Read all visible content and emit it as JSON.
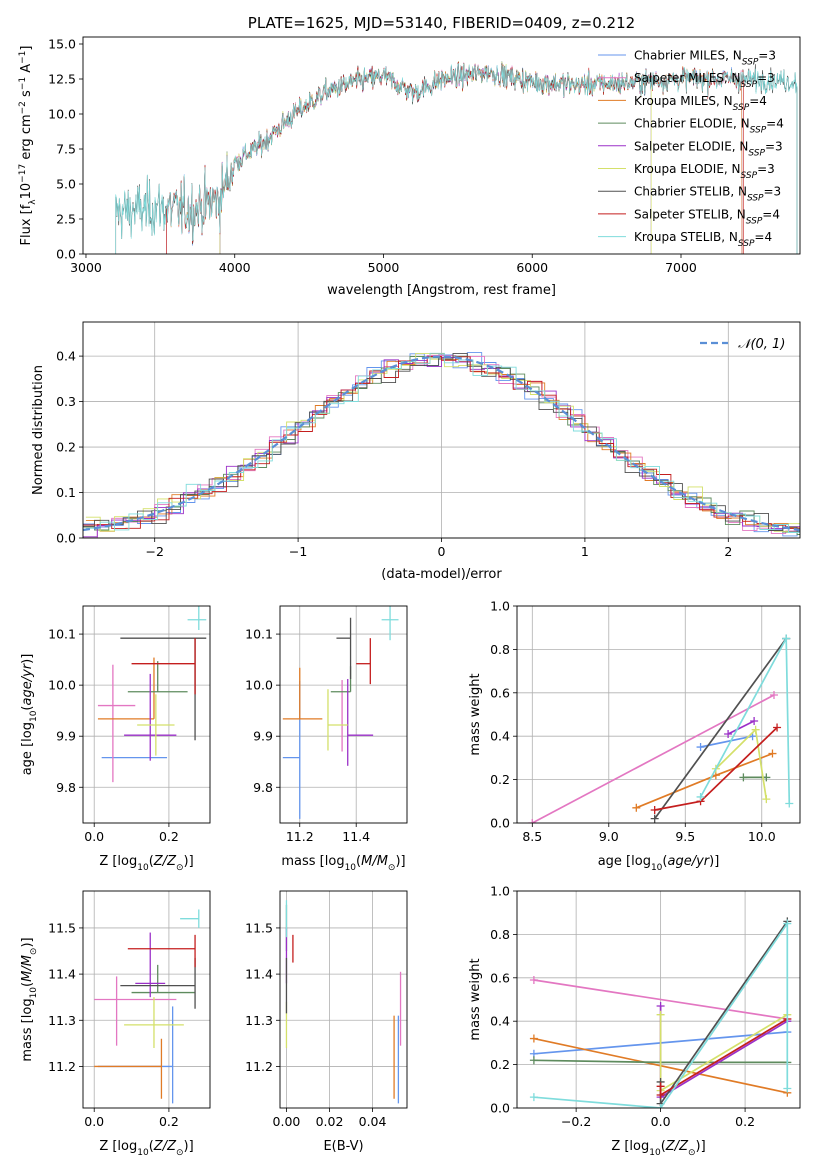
{
  "colors": {
    "Chabrier MILES": "#6495ED",
    "Salpeter MILES": "#E377C2",
    "Kroupa MILES": "#E07B26",
    "Chabrier ELODIE": "#5E8B5E",
    "Salpeter ELODIE": "#9B30C8",
    "Kroupa ELODIE": "#D4E06A",
    "Chabrier STELIB": "#505050",
    "Salpeter STELIB": "#C41E1E",
    "Kroupa STELIB": "#7FDCDC",
    "gaussian": "#5A8FD6",
    "grid": "#b0b0b0"
  },
  "chart_data": [
    {
      "id": "spectrum",
      "type": "line",
      "title": "PLATE=1625, MJD=53140, FIBERID=0409, z=0.212",
      "xlabel": "wavelength [Angstrom, rest frame]",
      "ylabel": "Flux [f_λ 10^−17 erg cm^−2 s^−1 A^−1]",
      "xlim": [
        2980,
        7800
      ],
      "ylim": [
        0,
        15.5
      ],
      "xticks": [
        "3000",
        "4000",
        "5000",
        "6000",
        "7000"
      ],
      "yticks": [
        "0.0",
        "2.5",
        "5.0",
        "7.5",
        "10.0",
        "12.5",
        "15.0"
      ],
      "grid": false,
      "legend": "upper right",
      "continuum_anchors": [
        [
          3200,
          3.0
        ],
        [
          3500,
          3.3
        ],
        [
          3700,
          3.1
        ],
        [
          3900,
          4.0
        ],
        [
          4000,
          6.5
        ],
        [
          4200,
          8.0
        ],
        [
          4400,
          10.0
        ],
        [
          4600,
          11.5
        ],
        [
          4800,
          12.3
        ],
        [
          5000,
          12.7
        ],
        [
          5200,
          11.5
        ],
        [
          5400,
          12.5
        ],
        [
          5700,
          13.0
        ],
        [
          6000,
          12.3
        ],
        [
          6300,
          12.1
        ],
        [
          6600,
          12.2
        ],
        [
          7000,
          12.5
        ],
        [
          7400,
          12.5
        ],
        [
          7780,
          12.3
        ]
      ],
      "series": [
        {
          "name": "Chabrier MILES",
          "nssp": "3",
          "x_range": [
            3540,
            7410
          ]
        },
        {
          "name": "Salpeter MILES",
          "nssp": "3",
          "x_range": [
            3540,
            7410
          ]
        },
        {
          "name": "Kroupa MILES",
          "nssp": "4",
          "x_range": [
            3540,
            7410
          ]
        },
        {
          "name": "Chabrier ELODIE",
          "nssp": "4",
          "x_range": [
            3900,
            6800
          ]
        },
        {
          "name": "Salpeter ELODIE",
          "nssp": "3",
          "x_range": [
            3900,
            6800
          ]
        },
        {
          "name": "Kroupa ELODIE",
          "nssp": "3",
          "x_range": [
            3900,
            6800
          ]
        },
        {
          "name": "Chabrier STELIB",
          "nssp": "3",
          "x_range": [
            3200,
            7780
          ]
        },
        {
          "name": "Salpeter STELIB",
          "nssp": "4",
          "x_range": [
            3540,
            7420
          ]
        },
        {
          "name": "Kroupa STELIB",
          "nssp": "4",
          "x_range": [
            3200,
            7780
          ]
        }
      ]
    },
    {
      "id": "residuals",
      "type": "line",
      "xlabel": "(data-model)/error",
      "ylabel": "Normed distribution",
      "xlim": [
        -2.5,
        2.5
      ],
      "ylim": [
        0,
        0.475
      ],
      "xticks": [
        "−2",
        "−1",
        "0",
        "1",
        "2"
      ],
      "yticks": [
        "0.0",
        "0.1",
        "0.2",
        "0.3",
        "0.4"
      ],
      "grid": true,
      "legend": "upper right",
      "gaussian_label": "𝒩(0, 1)",
      "bin_width": 0.1,
      "note": "Normalized step histograms, one per fit, following a standard normal curve."
    },
    {
      "id": "age_vs_Z",
      "type": "scatter",
      "xlabel": "Z [log10(Z/Z⊙)]",
      "ylabel": "age [log10(age/yr)]",
      "xlim": [
        -0.03,
        0.31
      ],
      "ylim": [
        9.73,
        10.155
      ],
      "xticks": [
        "0.0",
        "0.2"
      ],
      "yticks": [
        "9.8",
        "9.9",
        "10.0",
        "10.1"
      ],
      "grid": true,
      "points": [
        {
          "name": "Chabrier MILES",
          "x": 0.105,
          "xerr": [
            0.085,
            0.09
          ],
          "y": 9.858,
          "yerr": [
            0,
            0
          ]
        },
        {
          "name": "Salpeter MILES",
          "x": 0.05,
          "xerr": [
            0.04,
            0.06
          ],
          "y": 9.96,
          "yerr": [
            0.15,
            0.08
          ]
        },
        {
          "name": "Kroupa MILES",
          "x": 0.16,
          "xerr": [
            0.15,
            0.0
          ],
          "y": 9.934,
          "yerr": [
            0.0,
            0.12
          ]
        },
        {
          "name": "Chabrier ELODIE",
          "x": 0.17,
          "xerr": [
            0.08,
            0.08
          ],
          "y": 9.987,
          "yerr": [
            0.0,
            0.06
          ]
        },
        {
          "name": "Salpeter ELODIE",
          "x": 0.15,
          "xerr": [
            0.07,
            0.07
          ],
          "y": 9.902,
          "yerr": [
            0.05,
            0.12
          ]
        },
        {
          "name": "Kroupa ELODIE",
          "x": 0.165,
          "xerr": [
            0.05,
            0.05
          ],
          "y": 9.922,
          "yerr": [
            0.06,
            0.06
          ]
        },
        {
          "name": "Chabrier STELIB",
          "x": 0.27,
          "xerr": [
            0.2,
            0.03
          ],
          "y": 10.092,
          "yerr": [
            0.2,
            0.0
          ]
        },
        {
          "name": "Salpeter STELIB",
          "x": 0.27,
          "xerr": [
            0.17,
            0.0
          ],
          "y": 10.042,
          "yerr": [
            0.06,
            0.05
          ]
        },
        {
          "name": "Kroupa STELIB",
          "x": 0.28,
          "xerr": [
            0.03,
            0.02
          ],
          "y": 10.128,
          "yerr": [
            0.02,
            0.03
          ]
        }
      ]
    },
    {
      "id": "age_vs_mass",
      "type": "scatter",
      "xlabel": "mass [log10(M/M⊙)]",
      "ylabel": "",
      "xlim": [
        11.13,
        11.58
      ],
      "ylim": [
        9.73,
        10.155
      ],
      "xticks": [
        "11.2",
        "11.4"
      ],
      "yticks": [
        "9.8",
        "9.9",
        "10.0",
        "10.1"
      ],
      "grid": true,
      "points": [
        {
          "name": "Chabrier MILES",
          "x": 11.2,
          "xerr": [
            0.06,
            0.0
          ],
          "y": 9.858,
          "yerr": [
            0.12,
            0.15
          ]
        },
        {
          "name": "Salpeter MILES",
          "x": 11.35,
          "xerr": [
            0,
            0
          ],
          "y": 9.96,
          "yerr": [
            0.09,
            0.05
          ]
        },
        {
          "name": "Kroupa MILES",
          "x": 11.2,
          "xerr": [
            0.06,
            0.08
          ],
          "y": 9.934,
          "yerr": [
            0.0,
            0.1
          ]
        },
        {
          "name": "Chabrier ELODIE",
          "x": 11.38,
          "xerr": [
            0.07,
            0.0
          ],
          "y": 9.987,
          "yerr": [
            0.0,
            0.05
          ]
        },
        {
          "name": "Salpeter ELODIE",
          "x": 11.37,
          "xerr": [
            0.0,
            0.09
          ],
          "y": 9.902,
          "yerr": [
            0.06,
            0.11
          ]
        },
        {
          "name": "Kroupa ELODIE",
          "x": 11.3,
          "xerr": [
            0.0,
            0.07
          ],
          "y": 9.922,
          "yerr": [
            0.05,
            0.07
          ]
        },
        {
          "name": "Chabrier STELIB",
          "x": 11.38,
          "xerr": [
            0.05,
            0.0
          ],
          "y": 10.092,
          "yerr": [
            0.08,
            0.04
          ]
        },
        {
          "name": "Salpeter STELIB",
          "x": 11.45,
          "xerr": [
            0.05,
            0.0
          ],
          "y": 10.042,
          "yerr": [
            0.04,
            0.05
          ]
        },
        {
          "name": "Kroupa STELIB",
          "x": 11.52,
          "xerr": [
            0.03,
            0.03
          ],
          "y": 10.128,
          "yerr": [
            0.04,
            0.03
          ]
        }
      ]
    },
    {
      "id": "weight_vs_age",
      "type": "line",
      "xlabel": "age [log10(age/yr)]",
      "ylabel": "mass weight",
      "xlim": [
        8.4,
        10.25
      ],
      "ylim": [
        0.0,
        1.0
      ],
      "xticks": [
        "8.5",
        "9.0",
        "9.5",
        "10.0"
      ],
      "yticks": [
        "0.0",
        "0.2",
        "0.4",
        "0.6",
        "0.8",
        "1.0"
      ],
      "grid": true,
      "series": [
        {
          "name": "Chabrier MILES",
          "x": [
            9.6,
            9.94
          ],
          "y": [
            0.35,
            0.4
          ]
        },
        {
          "name": "Salpeter MILES",
          "x": [
            8.5,
            10.08
          ],
          "y": [
            0.0,
            0.59
          ]
        },
        {
          "name": "Kroupa MILES",
          "x": [
            9.18,
            9.7,
            10.07
          ],
          "y": [
            0.07,
            0.22,
            0.32
          ]
        },
        {
          "name": "Chabrier ELODIE",
          "x": [
            9.88,
            10.03
          ],
          "y": [
            0.21,
            0.21
          ]
        },
        {
          "name": "Salpeter ELODIE",
          "x": [
            9.78,
            9.95
          ],
          "y": [
            0.41,
            0.47
          ]
        },
        {
          "name": "Kroupa ELODIE",
          "x": [
            9.7,
            9.96,
            10.03
          ],
          "y": [
            0.25,
            0.43,
            0.11
          ]
        },
        {
          "name": "Chabrier STELIB",
          "x": [
            9.3,
            10.16
          ],
          "y": [
            0.02,
            0.85
          ]
        },
        {
          "name": "Salpeter STELIB",
          "x": [
            9.3,
            9.6,
            10.1
          ],
          "y": [
            0.06,
            0.1,
            0.44
          ]
        },
        {
          "name": "Kroupa STELIB",
          "x": [
            9.6,
            10.16,
            10.18
          ],
          "y": [
            0.12,
            0.85,
            0.09
          ]
        }
      ]
    },
    {
      "id": "mass_vs_Z",
      "type": "scatter",
      "xlabel": "Z [log10(Z/Z⊙)]",
      "ylabel": "mass [log10(M/M⊙)]",
      "xlim": [
        -0.03,
        0.31
      ],
      "ylim": [
        11.11,
        11.58
      ],
      "xticks": [
        "0.0",
        "0.2"
      ],
      "yticks": [
        "11.2",
        "11.3",
        "11.4",
        "11.5"
      ],
      "grid": true,
      "points": [
        {
          "name": "Chabrier MILES",
          "x": 0.21,
          "xerr": [
            0.2,
            0.0
          ],
          "y": 11.2,
          "yerr": [
            0.08,
            0.13
          ]
        },
        {
          "name": "Salpeter MILES",
          "x": 0.06,
          "xerr": [
            0.06,
            0.16
          ],
          "y": 11.345,
          "yerr": [
            0.1,
            0.05
          ]
        },
        {
          "name": "Kroupa MILES",
          "x": 0.18,
          "xerr": [
            0.18,
            0.0
          ],
          "y": 11.2,
          "yerr": [
            0.07,
            0.06
          ]
        },
        {
          "name": "Chabrier ELODIE",
          "x": 0.17,
          "xerr": [
            0.07,
            0.1
          ],
          "y": 11.36,
          "yerr": [
            0.0,
            0.06
          ]
        },
        {
          "name": "Salpeter ELODIE",
          "x": 0.15,
          "xerr": [
            0.04,
            0.04
          ],
          "y": 11.38,
          "yerr": [
            0.03,
            0.11
          ]
        },
        {
          "name": "Kroupa ELODIE",
          "x": 0.16,
          "xerr": [
            0.08,
            0.08
          ],
          "y": 11.29,
          "yerr": [
            0.05,
            0.06
          ]
        },
        {
          "name": "Chabrier STELIB",
          "x": 0.27,
          "xerr": [
            0.2,
            0.0
          ],
          "y": 11.375,
          "yerr": [
            0.05,
            0.06
          ]
        },
        {
          "name": "Salpeter STELIB",
          "x": 0.27,
          "xerr": [
            0.18,
            0.0
          ],
          "y": 11.455,
          "yerr": [
            0.04,
            0.03
          ]
        },
        {
          "name": "Kroupa STELIB",
          "x": 0.28,
          "xerr": [
            0.05,
            0.0
          ],
          "y": 11.52,
          "yerr": [
            0.02,
            0.02
          ]
        }
      ]
    },
    {
      "id": "mass_vs_ebv",
      "type": "scatter",
      "xlabel": "E(B-V)",
      "ylabel": "",
      "xlim": [
        -0.003,
        0.056
      ],
      "ylim": [
        11.11,
        11.58
      ],
      "xticks": [
        "0.00",
        "0.02",
        "0.04"
      ],
      "yticks": [
        "11.2",
        "11.3",
        "11.4",
        "11.5"
      ],
      "grid": true,
      "points": [
        {
          "name": "Chabrier MILES",
          "x": 0.052,
          "y": 11.2,
          "yerr": [
            0.08,
            0.11
          ]
        },
        {
          "name": "Salpeter MILES",
          "x": 0.053,
          "y": 11.345,
          "yerr": [
            0.1,
            0.06
          ]
        },
        {
          "name": "Kroupa MILES",
          "x": 0.05,
          "y": 11.2,
          "yerr": [
            0.07,
            0.11
          ]
        },
        {
          "name": "Chabrier ELODIE",
          "x": 0.0,
          "y": 11.5,
          "yerr": [
            0.05,
            0.05
          ]
        },
        {
          "name": "Salpeter ELODIE",
          "x": 0.0,
          "y": 11.4,
          "yerr": [
            0.02,
            0.1
          ]
        },
        {
          "name": "Kroupa ELODIE",
          "x": 0.0,
          "y": 11.29,
          "yerr": [
            0.05,
            0.05
          ]
        },
        {
          "name": "Chabrier STELIB",
          "x": 0.0,
          "y": 11.375,
          "yerr": [
            0.06,
            0.06
          ]
        },
        {
          "name": "Salpeter STELIB",
          "x": 0.003,
          "y": 11.455,
          "yerr": [
            0.03,
            0.03
          ]
        },
        {
          "name": "Kroupa STELIB",
          "x": 0.0,
          "y": 11.52,
          "yerr": [
            0.04,
            0.04
          ]
        }
      ]
    },
    {
      "id": "weight_vs_Z",
      "type": "line",
      "xlabel": "Z [log10(Z/Z⊙)]",
      "ylabel": "mass weight",
      "xlim": [
        -0.34,
        0.33
      ],
      "ylim": [
        0.0,
        1.0
      ],
      "xticks": [
        "−0.2",
        "0.0",
        "0.2"
      ],
      "yticks": [
        "0.0",
        "0.2",
        "0.4",
        "0.6",
        "0.8",
        "1.0"
      ],
      "grid": true,
      "series": [
        {
          "name": "Chabrier MILES",
          "x": [
            -0.3,
            0.3
          ],
          "y": [
            0.25,
            0.35
          ]
        },
        {
          "name": "Salpeter MILES",
          "x": [
            -0.3,
            0.3
          ],
          "y": [
            0.59,
            0.41
          ]
        },
        {
          "name": "Kroupa MILES",
          "x": [
            -0.3,
            0.3
          ],
          "y": [
            0.32,
            0.07
          ]
        },
        {
          "name": "Chabrier ELODIE",
          "x": [
            -0.3,
            0.0,
            0.3
          ],
          "y": [
            0.22,
            0.21,
            0.21
          ]
        },
        {
          "name": "Salpeter ELODIE",
          "x": [
            0.0,
            0.0,
            0.3
          ],
          "y": [
            0.47,
            0.05,
            0.4
          ]
        },
        {
          "name": "Kroupa ELODIE",
          "x": [
            0.0,
            0.0,
            0.3
          ],
          "y": [
            0.43,
            0.08,
            0.43
          ]
        },
        {
          "name": "Chabrier STELIB",
          "x": [
            0.0,
            0.0,
            0.3
          ],
          "y": [
            0.12,
            0.02,
            0.86
          ]
        },
        {
          "name": "Salpeter STELIB",
          "x": [
            0.0,
            0.0,
            0.3
          ],
          "y": [
            0.1,
            0.06,
            0.41
          ]
        },
        {
          "name": "Kroupa STELIB",
          "x": [
            -0.3,
            0.0,
            0.3,
            0.3
          ],
          "y": [
            0.05,
            0.0,
            0.85,
            0.09
          ]
        }
      ]
    }
  ]
}
